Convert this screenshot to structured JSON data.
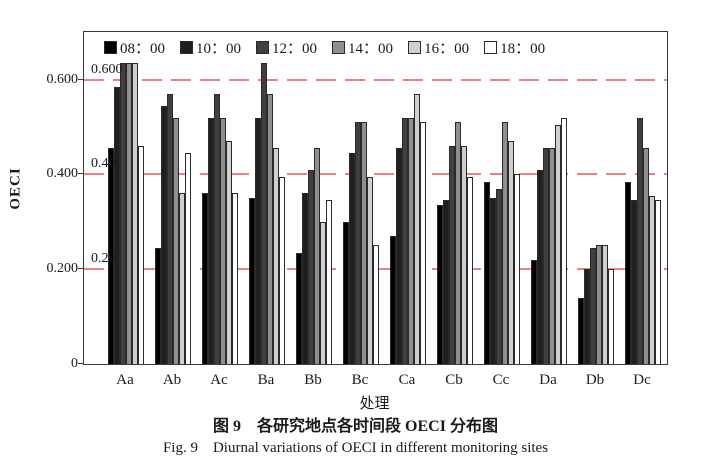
{
  "figure": {
    "caption_zh": "图 9　各研究地点各时间段 OECI 分布图",
    "caption_en": "Fig. 9　Diurnal variations of OECI in different monitoring sites"
  },
  "chart_data": {
    "type": "bar",
    "title": "",
    "xlabel": "处理",
    "ylabel": "OECI",
    "ylim": [
      0,
      0.7
    ],
    "grid": false,
    "legend_position": "top-inside-horizontal",
    "yticks": [
      {
        "value": 0,
        "label": "0"
      },
      {
        "value": 0.2,
        "label": "0.200"
      },
      {
        "value": 0.4,
        "label": "0.400"
      },
      {
        "value": 0.6,
        "label": "0.600"
      }
    ],
    "reference_lines": [
      {
        "value": 0.2,
        "inner_label": "0.20",
        "color": "#f07f7f",
        "style": "dashed"
      },
      {
        "value": 0.4,
        "inner_label": "0.40",
        "color": "#f07f7f",
        "style": "dashed"
      },
      {
        "value": 0.6,
        "inner_label": "0.600",
        "color": "#f07f7f",
        "style": "dashed"
      }
    ],
    "categories": [
      "Aa",
      "Ab",
      "Ac",
      "Ba",
      "Bb",
      "Bc",
      "Ca",
      "Cb",
      "Cc",
      "Da",
      "Db",
      "Dc"
    ],
    "series": [
      {
        "name": "08：00",
        "color": "#000000",
        "values": [
          0.455,
          0.245,
          0.36,
          0.35,
          0.235,
          0.3,
          0.27,
          0.335,
          0.385,
          0.22,
          0.14,
          0.385
        ]
      },
      {
        "name": "10：00",
        "color": "#1f1f1f",
        "values": [
          0.585,
          0.545,
          0.52,
          0.52,
          0.36,
          0.445,
          0.455,
          0.345,
          0.35,
          0.41,
          0.2,
          0.345
        ]
      },
      {
        "name": "12：00",
        "color": "#404040",
        "values": [
          0.635,
          0.57,
          0.57,
          0.635,
          0.41,
          0.51,
          0.52,
          0.46,
          0.37,
          0.455,
          0.245,
          0.52
        ]
      },
      {
        "name": "14：00",
        "color": "#8f8f8f",
        "values": [
          0.635,
          0.52,
          0.52,
          0.57,
          0.455,
          0.51,
          0.52,
          0.51,
          0.51,
          0.455,
          0.25,
          0.455
        ]
      },
      {
        "name": "16：00",
        "color": "#cfcfcf",
        "values": [
          0.635,
          0.36,
          0.47,
          0.455,
          0.3,
          0.395,
          0.57,
          0.46,
          0.47,
          0.505,
          0.25,
          0.355
        ]
      },
      {
        "name": "18：00",
        "color": "#ffffff",
        "values": [
          0.46,
          0.445,
          0.36,
          0.395,
          0.345,
          0.25,
          0.51,
          0.395,
          0.4,
          0.52,
          0.2,
          0.345
        ]
      }
    ]
  }
}
